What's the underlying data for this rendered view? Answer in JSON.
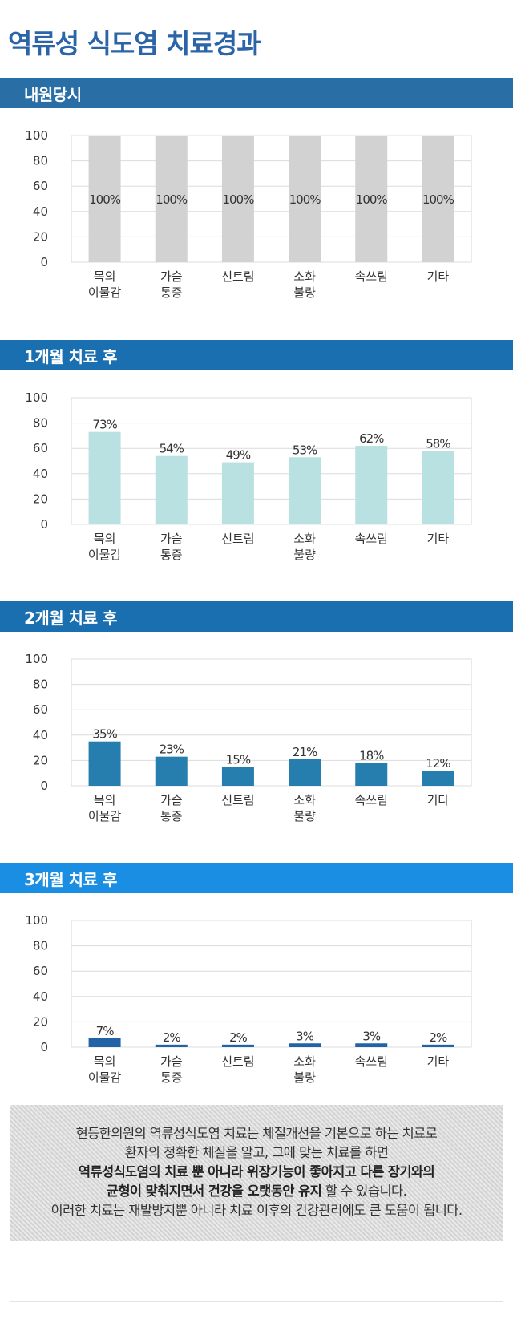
{
  "title": "역류성 식도염 치료경과",
  "colors": {
    "title": "#2b65a8",
    "section_bars": [
      "#2a6ea6",
      "#1a6fb0",
      "#1a6fb0",
      "#1a8ee3"
    ],
    "series": [
      "#d2d2d2",
      "#b9e1e2",
      "#257eae",
      "#2263a5"
    ]
  },
  "sections": [
    {
      "label": "내원당시"
    },
    {
      "label": "1개월 치료 후"
    },
    {
      "label": "2개월 치료 후"
    },
    {
      "label": "3개월 치료 후"
    }
  ],
  "chart_data": [
    {
      "type": "bar",
      "categories": [
        [
          "목의",
          "이물감"
        ],
        [
          "가슴",
          "통증"
        ],
        [
          "신트림"
        ],
        [
          "소화",
          "불량"
        ],
        [
          "속쓰림"
        ],
        [
          "기타"
        ]
      ],
      "values": [
        100,
        100,
        100,
        100,
        100,
        100
      ],
      "data_labels": [
        "100%",
        "100%",
        "100%",
        "100%",
        "100%",
        "100%"
      ],
      "yticks": [
        "0",
        "20",
        "40",
        "60",
        "80",
        "100"
      ],
      "ylim": [
        0,
        100
      ],
      "grid": true,
      "label_position": "middle"
    },
    {
      "type": "bar",
      "categories": [
        [
          "목의",
          "이물감"
        ],
        [
          "가슴",
          "통증"
        ],
        [
          "신트림"
        ],
        [
          "소화",
          "불량"
        ],
        [
          "속쓰림"
        ],
        [
          "기타"
        ]
      ],
      "values": [
        73,
        54,
        49,
        53,
        62,
        58
      ],
      "data_labels": [
        "73%",
        "54%",
        "49%",
        "53%",
        "62%",
        "58%"
      ],
      "yticks": [
        "0",
        "20",
        "40",
        "60",
        "80",
        "100"
      ],
      "ylim": [
        0,
        100
      ],
      "grid": true,
      "label_position": "above"
    },
    {
      "type": "bar",
      "categories": [
        [
          "목의",
          "이물감"
        ],
        [
          "가슴",
          "통증"
        ],
        [
          "신트림"
        ],
        [
          "소화",
          "불량"
        ],
        [
          "속쓰림"
        ],
        [
          "기타"
        ]
      ],
      "values": [
        35,
        23,
        15,
        21,
        18,
        12
      ],
      "data_labels": [
        "35%",
        "23%",
        "15%",
        "21%",
        "18%",
        "12%"
      ],
      "yticks": [
        "0",
        "20",
        "40",
        "60",
        "80",
        "100"
      ],
      "ylim": [
        0,
        100
      ],
      "grid": true,
      "label_position": "above"
    },
    {
      "type": "bar",
      "categories": [
        [
          "목의",
          "이물감"
        ],
        [
          "가슴",
          "통증"
        ],
        [
          "신트림"
        ],
        [
          "소화",
          "불량"
        ],
        [
          "속쓰림"
        ],
        [
          "기타"
        ]
      ],
      "values": [
        7,
        2,
        2,
        3,
        3,
        2
      ],
      "data_labels": [
        "7%",
        "2%",
        "2%",
        "3%",
        "3%",
        "2%"
      ],
      "yticks": [
        "0",
        "20",
        "40",
        "60",
        "80",
        "100"
      ],
      "ylim": [
        0,
        100
      ],
      "grid": true,
      "label_position": "above"
    }
  ],
  "info": {
    "line1": "현등한의원의 역류성식도염 치료는 체질개선을 기본으로 하는 치료로",
    "line2": "환자의 정확한 체질을 알고, 그에 맞는 치료를 하면",
    "line3": "역류성식도염의 치료 뿐 아니라 위장기능이 좋아지고 다른 장기와의",
    "line4_bold": "균형이 맞춰지면서 건강을 오랫동안 유지",
    "line4_rest": " 할 수 있습니다.",
    "line5": "이러한 치료는 재발방지뿐 아니라 치료 이후의 건강관리에도 큰 도움이 됩니다."
  }
}
